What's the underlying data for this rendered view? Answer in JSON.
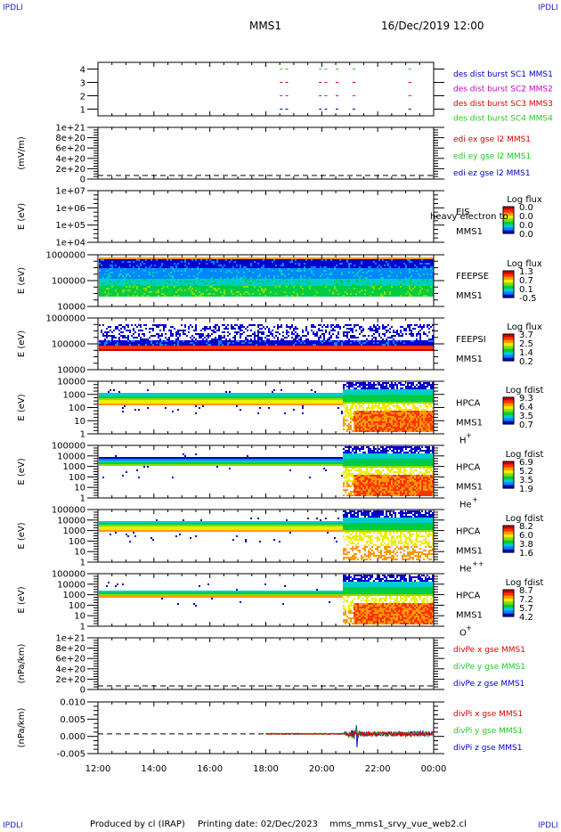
{
  "corners": {
    "tl": "IPDLI",
    "tr": "IPDLI",
    "bl": "IPDLI",
    "br": "IPDLI"
  },
  "header": {
    "spacecraft": "MMS1",
    "datetime": "16/Dec/2019 12:00"
  },
  "footer": {
    "producer": "Produced by cl (IRAP)",
    "printing": "Printing date: 02/Dec/2023",
    "script": "mms_mms1_srvy_vue_web2.cl"
  },
  "time_axis": {
    "ticks": [
      "12:00",
      "14:00",
      "16:00",
      "18:00",
      "20:00",
      "22:00",
      "00:00"
    ],
    "range_hours": [
      12,
      24
    ]
  },
  "colors": {
    "red": "#dd0000",
    "green": "#22cc22",
    "blue": "#0000cc",
    "magenta": "#cc00cc"
  },
  "chart_data": [
    {
      "type": "scatter",
      "id": "burst",
      "yticks": [
        "4",
        "3",
        "2",
        "1"
      ],
      "ylim": [
        0.5,
        4.5
      ],
      "series": [
        {
          "name": "des dist burst SC1 MMS1",
          "color": "#0000cc",
          "y": 1,
          "x": [
            18.5,
            18.7,
            19.9,
            20.1,
            20.5,
            21.1,
            23.1
          ]
        },
        {
          "name": "des dist burst SC2 MMS2",
          "color": "#cc00cc",
          "y": 2,
          "x": [
            18.5,
            18.7,
            19.9,
            20.1,
            20.5,
            21.1,
            23.1
          ]
        },
        {
          "name": "des dist burst SC3 MMS3",
          "color": "#dd0000",
          "y": 3,
          "x": [
            18.5,
            18.7,
            19.9,
            20.1,
            20.5,
            21.1,
            23.1
          ]
        },
        {
          "name": "des dist burst SC4 MMS4",
          "color": "#22cc22",
          "y": 4,
          "x": [
            18.5,
            18.7,
            19.9,
            20.1,
            20.5,
            21.1,
            23.1
          ]
        }
      ]
    },
    {
      "type": "line",
      "id": "edi",
      "ylabel": "(mV/m)",
      "yticks": [
        "1e+21",
        "8e+20",
        "6e+20",
        "4e+20",
        "2e+20",
        "0"
      ],
      "series": [
        {
          "name": "edi ex gse l2 MMS1",
          "color": "#dd0000"
        },
        {
          "name": "edi ey gse l2 MMS1",
          "color": "#22cc22"
        },
        {
          "name": "edi ez gse l2 MMS1",
          "color": "#0000cc"
        }
      ]
    },
    {
      "type": "heatmap",
      "id": "eis",
      "ylabel": "E (eV)",
      "yticks": [
        "1e+07",
        "1e+06",
        "1e+05",
        "1e+04"
      ],
      "labels": [
        "EIS",
        "MMS1"
      ],
      "overlay": "heavy electron to",
      "colorbar_title": "Log flux",
      "colorbar_ticks": [
        "0.0",
        "0.0",
        "0.0",
        "0.0"
      ]
    },
    {
      "type": "heatmap",
      "id": "feepse",
      "ylabel": "E (eV)",
      "yticks": [
        "1000000",
        "100000",
        "10000"
      ],
      "labels": [
        "FEEPSE",
        "MMS1"
      ],
      "colorbar_title": "Log flux",
      "colorbar_ticks": [
        "1.3",
        "0.7",
        "0.1",
        "-0.5"
      ]
    },
    {
      "type": "heatmap",
      "id": "feepsi",
      "ylabel": "E (eV)",
      "yticks": [
        "1000000",
        "100000",
        "10000"
      ],
      "labels": [
        "FEEPSI",
        "MMS1"
      ],
      "colorbar_title": "Log flux",
      "colorbar_ticks": [
        "3.7",
        "2.5",
        "1.4",
        "0.2"
      ]
    },
    {
      "type": "heatmap",
      "id": "hpca_h",
      "ylabel": "E (eV)",
      "yticks": [
        "10000",
        "1000",
        "100",
        "10",
        "1"
      ],
      "labels": [
        "HPCA",
        "MMS1"
      ],
      "species": "H",
      "charge": "+",
      "colorbar_title": "Log fdist",
      "colorbar_ticks": [
        "9.3",
        "6.4",
        "3.5",
        "0.7"
      ]
    },
    {
      "type": "heatmap",
      "id": "hpca_he",
      "ylabel": "E (eV)",
      "yticks": [
        "100000",
        "10000",
        "1000",
        "100",
        "10",
        "1"
      ],
      "labels": [
        "HPCA",
        "MMS1"
      ],
      "species": "He",
      "charge": "+",
      "colorbar_title": "Log fdist",
      "colorbar_ticks": [
        "6.9",
        "5.2",
        "3.5",
        "1.9"
      ]
    },
    {
      "type": "heatmap",
      "id": "hpca_hepp",
      "ylabel": "E (eV)",
      "yticks": [
        "100000",
        "10000",
        "1000",
        "100",
        "10",
        "1"
      ],
      "labels": [
        "HPCA",
        "MMS1"
      ],
      "species": "He",
      "charge": "++",
      "colorbar_title": "Log fdist",
      "colorbar_ticks": [
        "8.2",
        "6.0",
        "3.8",
        "1.6"
      ]
    },
    {
      "type": "heatmap",
      "id": "hpca_o",
      "ylabel": "E (eV)",
      "yticks": [
        "100000",
        "10000",
        "1000",
        "100",
        "10",
        "1"
      ],
      "labels": [
        "HPCA",
        "MMS1"
      ],
      "species": "O",
      "charge": "+",
      "colorbar_title": "Log fdist",
      "colorbar_ticks": [
        "8.7",
        "7.2",
        "5.7",
        "4.2"
      ]
    },
    {
      "type": "line",
      "id": "divpe",
      "ylabel": "(nPa/km)",
      "yticks": [
        "1e+21",
        "8e+20",
        "6e+20",
        "4e+20",
        "2e+20",
        "0"
      ],
      "series": [
        {
          "name": "divPe x gse MMS1",
          "color": "#dd0000"
        },
        {
          "name": "divPe y gse MMS1",
          "color": "#22cc22"
        },
        {
          "name": "divPe z gse MMS1",
          "color": "#0000cc"
        }
      ]
    },
    {
      "type": "line",
      "id": "divpi",
      "ylabel": "(nPa/km)",
      "yticks": [
        "0.010",
        "0.005",
        "0.000",
        "-0.005"
      ],
      "ylim": [
        -0.0065,
        0.0105
      ],
      "series": [
        {
          "name": "divPi x gse MMS1",
          "color": "#dd0000"
        },
        {
          "name": "divPi y gse MMS1",
          "color": "#22cc22"
        },
        {
          "name": "divPi z gse MMS1",
          "color": "#0000cc"
        }
      ]
    }
  ]
}
